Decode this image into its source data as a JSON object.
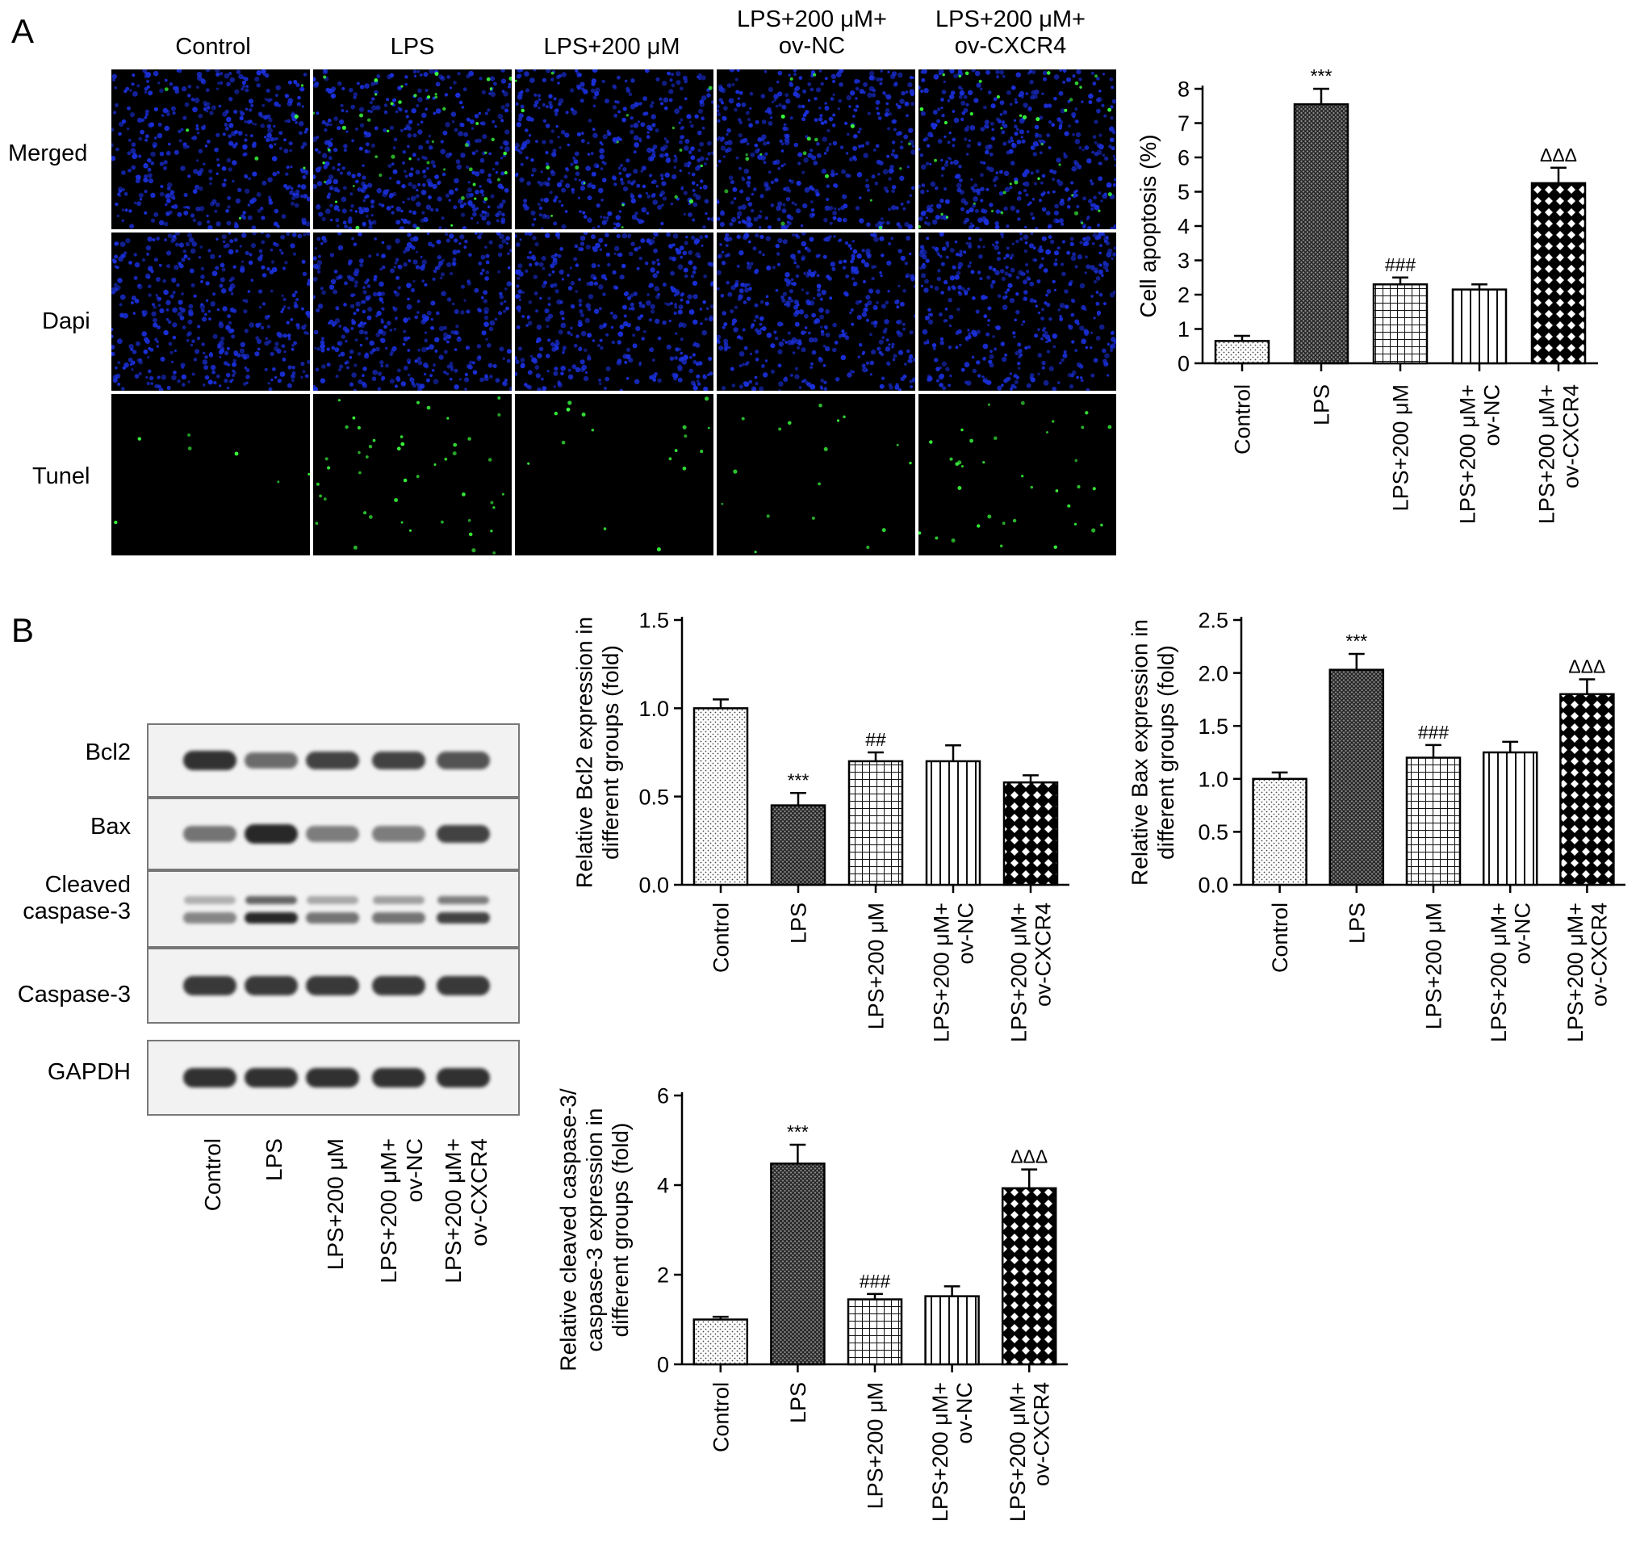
{
  "panels": {
    "A": {
      "letter": "A"
    },
    "B": {
      "letter": "B"
    }
  },
  "microscopy": {
    "columns": [
      [
        "Control"
      ],
      [
        "LPS"
      ],
      [
        "LPS+200 μM"
      ],
      [
        "LPS+200 μM+",
        "ov-NC"
      ],
      [
        "LPS+200 μM+",
        "ov-CXCR4"
      ]
    ],
    "rows": [
      "Merged",
      "Dapi",
      "Tunel"
    ],
    "colors": {
      "dapi": "#1a2fd8",
      "tunel": "#39ff3c",
      "background": "#000000"
    },
    "tunel_relative_density": [
      0.05,
      0.55,
      0.18,
      0.17,
      0.42
    ]
  },
  "western_blot": {
    "bands": [
      "Bcl2",
      "Bax",
      "Cleaved caspase-3",
      "Caspase-3",
      "GAPDH"
    ],
    "band_label_lines": [
      [
        "Bcl2"
      ],
      [
        "Bax"
      ],
      [
        "Cleaved",
        "caspase-3"
      ],
      [
        "Caspase-3"
      ],
      [
        "GAPDH"
      ]
    ],
    "lanes": [
      [
        "Control"
      ],
      [
        "LPS"
      ],
      [
        "LPS+200 μM"
      ],
      [
        "LPS+200 μM+",
        "ov-NC"
      ],
      [
        "LPS+200 μM+",
        "ov-CXCR4"
      ]
    ],
    "band_intensity": {
      "Bcl2": [
        0.95,
        0.6,
        0.85,
        0.85,
        0.75
      ],
      "Bax": [
        0.55,
        1.0,
        0.5,
        0.5,
        0.85
      ],
      "Cleaved caspase-3 upper": [
        0.2,
        0.65,
        0.25,
        0.3,
        0.5
      ],
      "Cleaved caspase-3 lower": [
        0.45,
        1.0,
        0.55,
        0.55,
        0.85
      ],
      "Caspase-3": [
        0.9,
        0.9,
        0.9,
        0.9,
        0.9
      ],
      "GAPDH": [
        0.95,
        0.95,
        0.95,
        0.95,
        0.95
      ]
    }
  },
  "chart_data": [
    {
      "id": "apoptosis",
      "type": "bar",
      "categories": [
        "Control",
        "LPS",
        "LPS+200 μM",
        "LPS+200 μM+ ov-NC",
        "LPS+200 μM+ ov-CXCR4"
      ],
      "category_lines": [
        [
          "Control"
        ],
        [
          "LPS"
        ],
        [
          "LPS+200 μM"
        ],
        [
          "LPS+200 μM+",
          "ov-NC"
        ],
        [
          "LPS+200 μM+",
          "ov-CXCR4"
        ]
      ],
      "values": [
        0.65,
        7.55,
        2.3,
        2.15,
        5.25
      ],
      "errors": [
        0.15,
        0.45,
        0.2,
        0.15,
        0.45
      ],
      "annotations": [
        "",
        "***",
        "###",
        "",
        "ΔΔΔ"
      ],
      "ylabel_lines": [
        "Cell apoptosis (%)"
      ],
      "ylim": [
        0,
        8
      ],
      "yticks": [
        0,
        1,
        2,
        3,
        4,
        5,
        6,
        7,
        8
      ],
      "ytick_labels": [
        "0",
        "1",
        "2",
        "3",
        "4",
        "5",
        "6",
        "7",
        "8"
      ],
      "fills": [
        "dots",
        "dense-cross",
        "grid",
        "vlines",
        "diamond"
      ],
      "grid": false
    },
    {
      "id": "bcl2",
      "type": "bar",
      "categories": [
        "Control",
        "LPS",
        "LPS+200 μM",
        "LPS+200 μM+ ov-NC",
        "LPS+200 μM+ ov-CXCR4"
      ],
      "category_lines": [
        [
          "Control"
        ],
        [
          "LPS"
        ],
        [
          "LPS+200 μM"
        ],
        [
          "LPS+200 μM+",
          "ov-NC"
        ],
        [
          "LPS+200 μM+",
          "ov-CXCR4"
        ]
      ],
      "values": [
        1.0,
        0.45,
        0.7,
        0.7,
        0.58
      ],
      "errors": [
        0.05,
        0.07,
        0.05,
        0.09,
        0.04
      ],
      "annotations": [
        "",
        "***",
        "##",
        "",
        ""
      ],
      "ylabel_lines": [
        "Relative Bcl2 expression in",
        "different groups (fold)"
      ],
      "ylim": [
        0,
        1.5
      ],
      "yticks": [
        0,
        0.5,
        1.0,
        1.5
      ],
      "ytick_labels": [
        "0.0",
        "0.5",
        "1.0",
        "1.5"
      ],
      "fills": [
        "dots",
        "dense-cross",
        "grid",
        "vlines",
        "diamond"
      ],
      "grid": false
    },
    {
      "id": "bax",
      "type": "bar",
      "categories": [
        "Control",
        "LPS",
        "LPS+200 μM",
        "LPS+200 μM+ ov-NC",
        "LPS+200 μM+ ov-CXCR4"
      ],
      "category_lines": [
        [
          "Control"
        ],
        [
          "LPS"
        ],
        [
          "LPS+200 μM"
        ],
        [
          "LPS+200 μM+",
          "ov-NC"
        ],
        [
          "LPS+200 μM+",
          "ov-CXCR4"
        ]
      ],
      "values": [
        1.0,
        2.03,
        1.2,
        1.25,
        1.8
      ],
      "errors": [
        0.06,
        0.15,
        0.12,
        0.1,
        0.14
      ],
      "annotations": [
        "",
        "***",
        "###",
        "",
        "ΔΔΔ"
      ],
      "ylabel_lines": [
        "Relative Bax expression in",
        "different groups (fold)"
      ],
      "ylim": [
        0,
        2.5
      ],
      "yticks": [
        0,
        0.5,
        1.0,
        1.5,
        2.0,
        2.5
      ],
      "ytick_labels": [
        "0.0",
        "0.5",
        "1.0",
        "1.5",
        "2.0",
        "2.5"
      ],
      "fills": [
        "dots",
        "dense-cross",
        "grid",
        "vlines",
        "diamond"
      ],
      "grid": false
    },
    {
      "id": "cleaved",
      "type": "bar",
      "categories": [
        "Control",
        "LPS",
        "LPS+200 μM",
        "LPS+200 μM+ ov-NC",
        "LPS+200 μM+ ov-CXCR4"
      ],
      "category_lines": [
        [
          "Control"
        ],
        [
          "LPS"
        ],
        [
          "LPS+200 μM"
        ],
        [
          "LPS+200 μM+",
          "ov-NC"
        ],
        [
          "LPS+200 μM+",
          "ov-CXCR4"
        ]
      ],
      "values": [
        1.0,
        4.48,
        1.45,
        1.52,
        3.93
      ],
      "errors": [
        0.06,
        0.42,
        0.12,
        0.22,
        0.42
      ],
      "annotations": [
        "",
        "***",
        "###",
        "",
        "ΔΔΔ"
      ],
      "ylabel_lines": [
        "Relative cleaved caspase-3/",
        "caspase-3 expression in",
        "different groups (fold)"
      ],
      "ylim": [
        0,
        6
      ],
      "yticks": [
        0,
        2,
        4,
        6
      ],
      "ytick_labels": [
        "0",
        "2",
        "4",
        "6"
      ],
      "fills": [
        "dots",
        "dense-cross",
        "grid",
        "vlines",
        "diamond"
      ],
      "grid": false
    }
  ]
}
